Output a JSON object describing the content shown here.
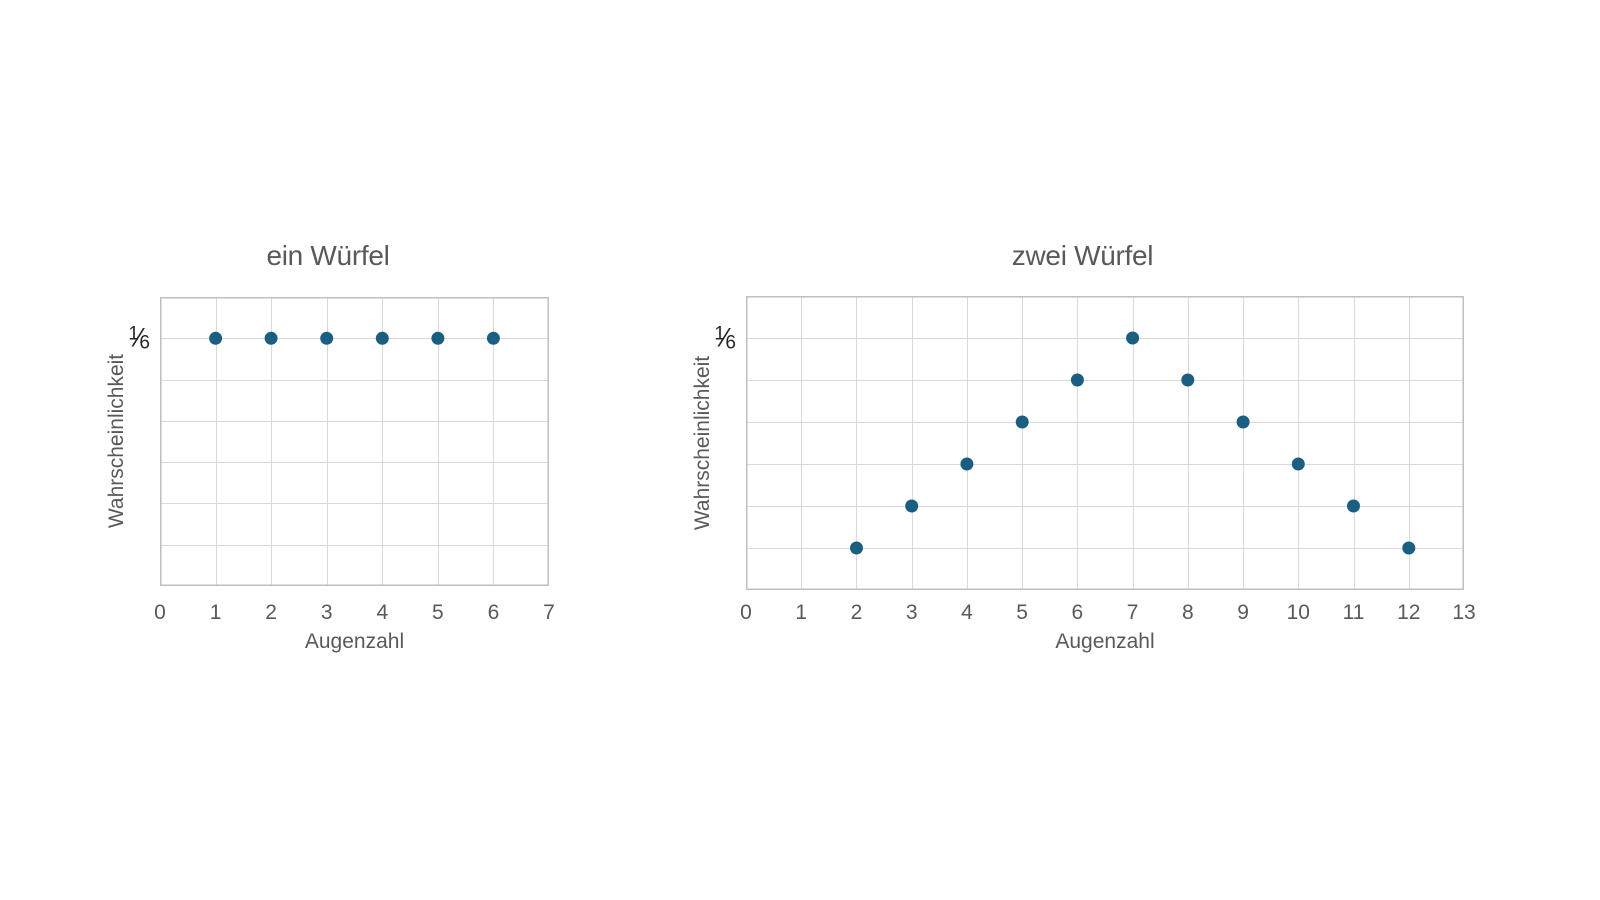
{
  "page": {
    "background": "#ffffff",
    "text_color": "#595959",
    "grid_color": "#d9d9d9",
    "border_color": "#bfbfbf",
    "point_color": "#1a5f82",
    "fraction_color": "#262626"
  },
  "chart_data": [
    {
      "type": "scatter",
      "title": "ein Würfel",
      "xlabel": "Augenzahl",
      "ylabel": "Wahrscheinlichkeit",
      "grid": "on",
      "legend": "none",
      "xlim": [
        0,
        7
      ],
      "x_ticks": [
        0,
        1,
        2,
        3,
        4,
        5,
        6,
        7
      ],
      "ylim_fraction": [
        "0",
        "7/36"
      ],
      "y_grid_step_fraction": "1/36",
      "y_tick": {
        "label": "1/6",
        "numerator": "1",
        "slash": "⁄",
        "denominator": "6",
        "position_36ths": 6
      },
      "points": [
        {
          "x": 1,
          "p": "1/6",
          "p_36ths": 6
        },
        {
          "x": 2,
          "p": "1/6",
          "p_36ths": 6
        },
        {
          "x": 3,
          "p": "1/6",
          "p_36ths": 6
        },
        {
          "x": 4,
          "p": "1/6",
          "p_36ths": 6
        },
        {
          "x": 5,
          "p": "1/6",
          "p_36ths": 6
        },
        {
          "x": 6,
          "p": "1/6",
          "p_36ths": 6
        }
      ]
    },
    {
      "type": "scatter",
      "title": "zwei Würfel",
      "xlabel": "Augenzahl",
      "ylabel": "Wahrscheinlichkeit",
      "grid": "on",
      "legend": "none",
      "xlim": [
        0,
        13
      ],
      "x_ticks": [
        0,
        1,
        2,
        3,
        4,
        5,
        6,
        7,
        8,
        9,
        10,
        11,
        12,
        13
      ],
      "ylim_fraction": [
        "0",
        "7/36"
      ],
      "y_grid_step_fraction": "1/36",
      "y_tick": {
        "label": "1/6",
        "numerator": "1",
        "slash": "⁄",
        "denominator": "6",
        "position_36ths": 6
      },
      "points": [
        {
          "x": 2,
          "p": "1/36",
          "p_36ths": 1
        },
        {
          "x": 3,
          "p": "2/36",
          "p_36ths": 2
        },
        {
          "x": 4,
          "p": "3/36",
          "p_36ths": 3
        },
        {
          "x": 5,
          "p": "4/36",
          "p_36ths": 4
        },
        {
          "x": 6,
          "p": "5/36",
          "p_36ths": 5
        },
        {
          "x": 7,
          "p": "6/36",
          "p_36ths": 6
        },
        {
          "x": 8,
          "p": "5/36",
          "p_36ths": 5
        },
        {
          "x": 9,
          "p": "4/36",
          "p_36ths": 4
        },
        {
          "x": 10,
          "p": "3/36",
          "p_36ths": 3
        },
        {
          "x": 11,
          "p": "2/36",
          "p_36ths": 2
        },
        {
          "x": 12,
          "p": "1/36",
          "p_36ths": 1
        }
      ]
    }
  ]
}
